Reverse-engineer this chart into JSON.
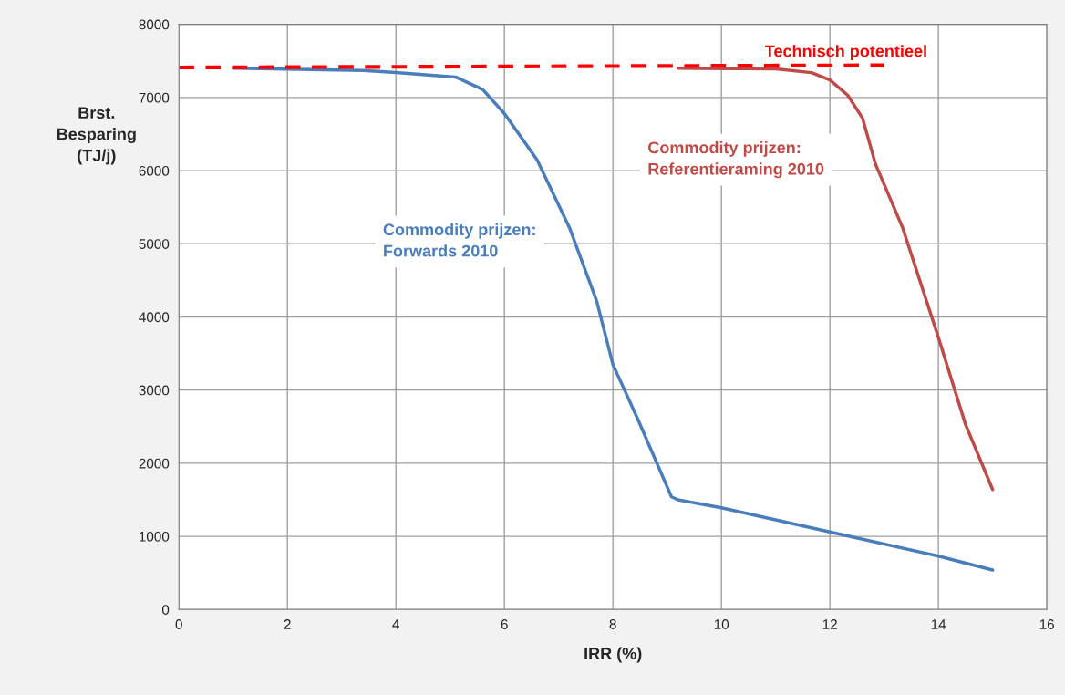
{
  "chart_data": {
    "type": "line",
    "xlabel": "IRR (%)",
    "ylabel": "Brst.\nBesparing\n(TJ/j)",
    "xlim": [
      0,
      16
    ],
    "xticks": [
      0,
      2,
      4,
      6,
      8,
      10,
      12,
      14,
      16
    ],
    "ylim": [
      0,
      8000
    ],
    "yticks": [
      0,
      1000,
      2000,
      3000,
      4000,
      5000,
      6000,
      7000,
      8000
    ],
    "grid": true,
    "legend": false,
    "marker": "none",
    "series": [
      {
        "name": "Commodity prijzen:\nForwards 2010",
        "color": "#4a7ebb",
        "line_style": "solid",
        "x": [
          1,
          3.4,
          4,
          5.1,
          5.6,
          6,
          6.6,
          7.2,
          7.7,
          8,
          8.46,
          9.08,
          9.2,
          10,
          12,
          14,
          15
        ],
        "values": [
          7400,
          7370,
          7340,
          7280,
          7110,
          6780,
          6150,
          5220,
          4220,
          3350,
          2600,
          1540,
          1500,
          1390,
          1060,
          730,
          540
        ]
      },
      {
        "name": "Commodity prijzen:\nReferentieraming 2010",
        "color": "#be4b48",
        "line_style": "solid",
        "x": [
          9.2,
          11,
          11.66,
          12,
          12.33,
          12.6,
          12.84,
          13.34,
          14,
          14.5,
          15
        ],
        "values": [
          7400,
          7390,
          7340,
          7240,
          7030,
          6720,
          6090,
          5220,
          3720,
          2530,
          1640
        ]
      },
      {
        "name": "Technisch potentieel",
        "color": "#ff0000",
        "line_style": "dashed",
        "x": [
          0,
          13
        ],
        "values": [
          7410,
          7440
        ]
      }
    ]
  }
}
